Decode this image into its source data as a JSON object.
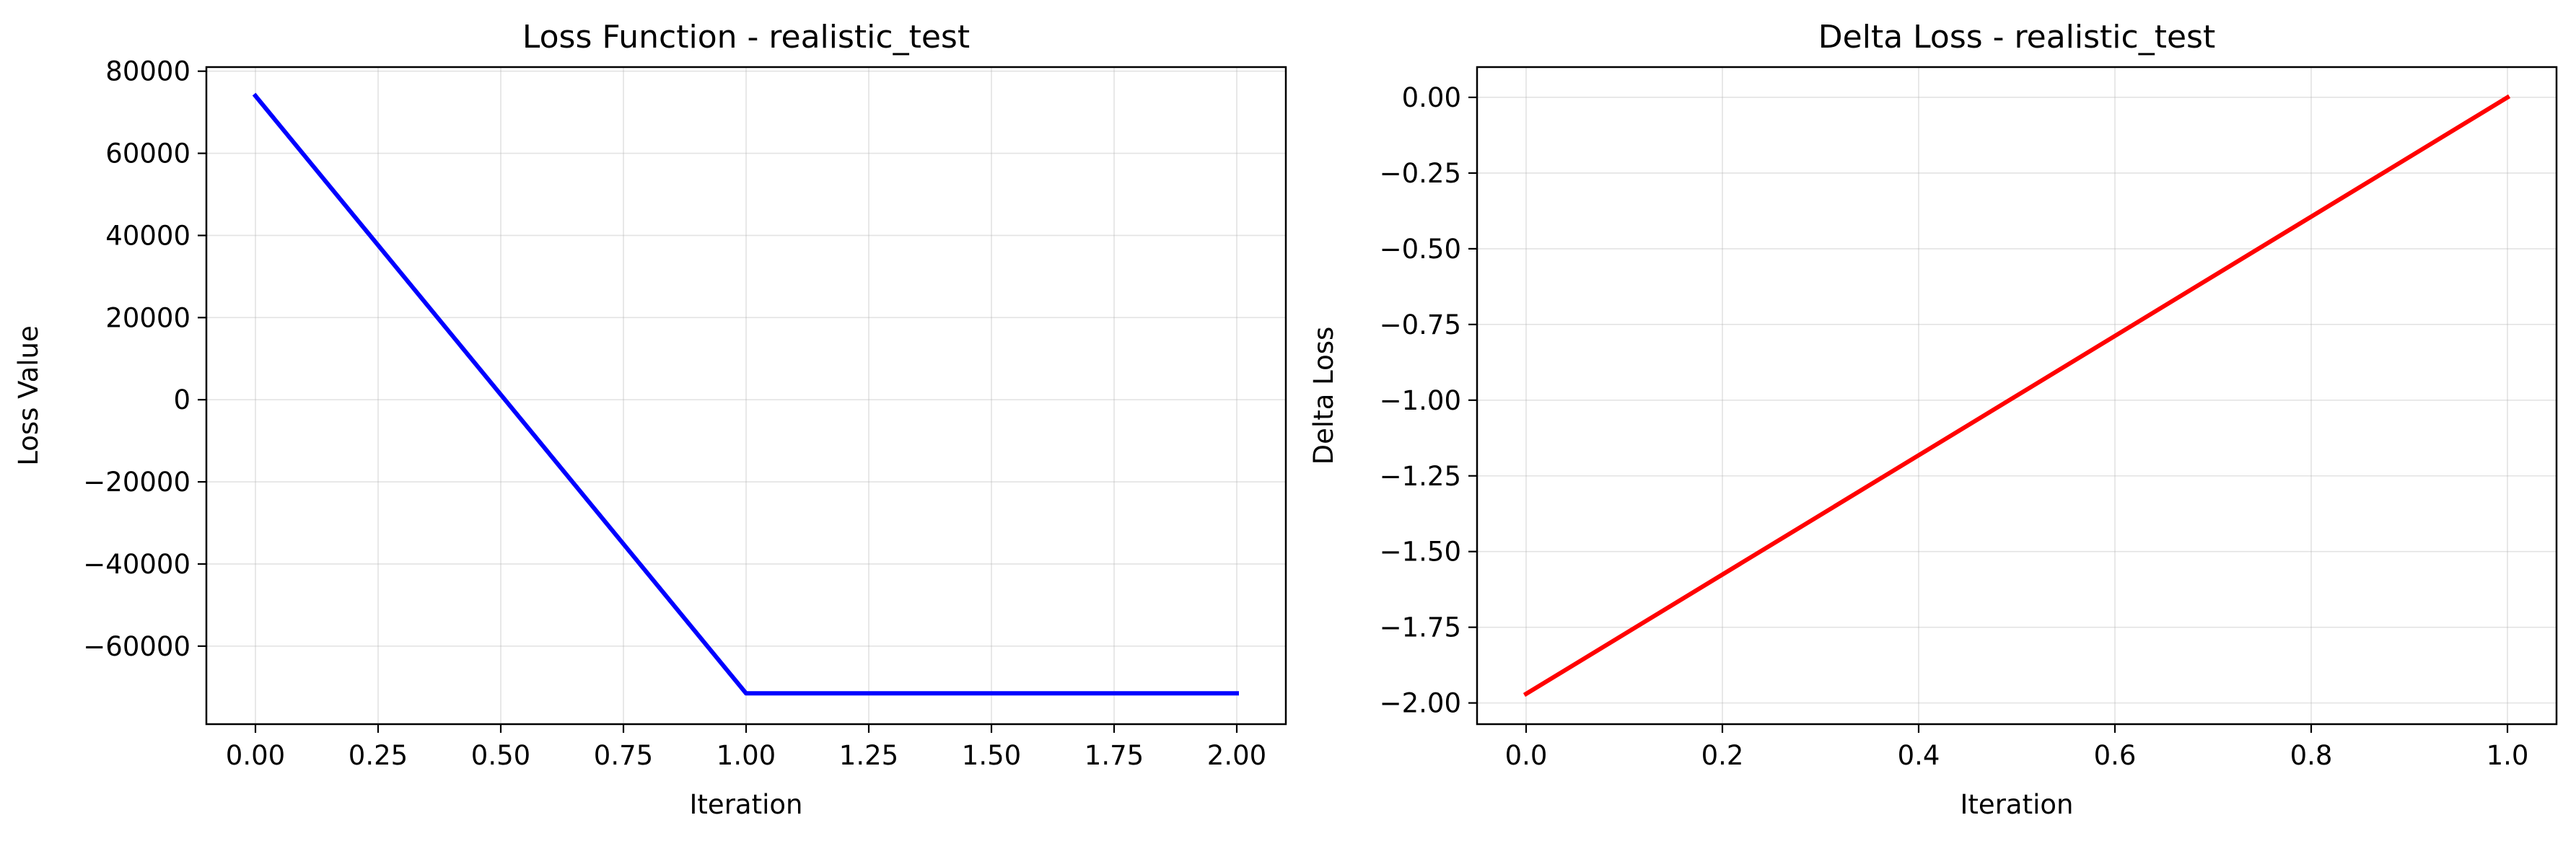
{
  "chart_data": [
    {
      "type": "line",
      "title": "Loss Function - realistic_test",
      "xlabel": "Iteration",
      "ylabel": "Loss Value",
      "xlim": [
        -0.1,
        2.1
      ],
      "ylim": [
        -79000,
        81000
      ],
      "xticks": [
        0,
        0.25,
        0.5,
        0.75,
        1,
        1.25,
        1.5,
        1.75,
        2
      ],
      "xtick_labels": [
        "0.00",
        "0.25",
        "0.50",
        "0.75",
        "1.00",
        "1.25",
        "1.50",
        "1.75",
        "2.00"
      ],
      "yticks": [
        -60000,
        -40000,
        -20000,
        0,
        20000,
        40000,
        60000,
        80000
      ],
      "ytick_labels": [
        "−60000",
        "−40000",
        "−20000",
        "0",
        "20000",
        "40000",
        "60000",
        "80000"
      ],
      "grid": true,
      "series": [
        {
          "x": [
            0,
            1,
            2
          ],
          "y": [
            74000,
            -71500,
            -71500
          ],
          "color": "#0000ff"
        }
      ]
    },
    {
      "type": "line",
      "title": "Delta Loss - realistic_test",
      "xlabel": "Iteration",
      "ylabel": "Delta Loss",
      "xlim": [
        -0.05,
        1.05
      ],
      "ylim": [
        -2.07,
        0.1
      ],
      "xticks": [
        0,
        0.2,
        0.4,
        0.6,
        0.8,
        1
      ],
      "xtick_labels": [
        "0.0",
        "0.2",
        "0.4",
        "0.6",
        "0.8",
        "1.0"
      ],
      "yticks": [
        -2,
        -1.75,
        -1.5,
        -1.25,
        -1,
        -0.75,
        -0.5,
        -0.25,
        0
      ],
      "ytick_labels": [
        "−2.00",
        "−1.75",
        "−1.50",
        "−1.25",
        "−1.00",
        "−0.75",
        "−0.50",
        "−0.25",
        "0.00"
      ],
      "grid": true,
      "series": [
        {
          "x": [
            0,
            1
          ],
          "y": [
            -1.97,
            0
          ],
          "color": "#ff0000"
        }
      ]
    }
  ]
}
